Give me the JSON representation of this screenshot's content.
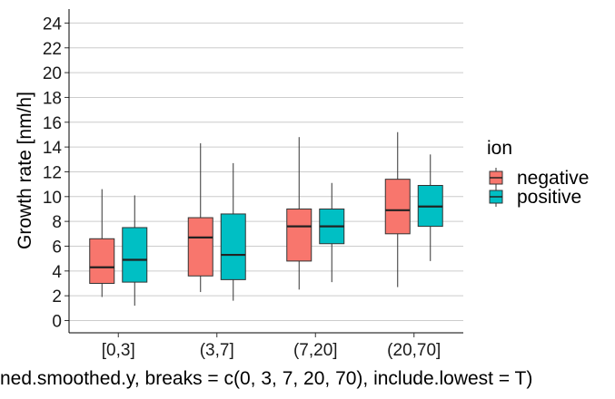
{
  "chart_data": {
    "type": "box",
    "xlabel": "ned.smoothed.y, breaks = c(0, 3, 7, 20, 70), include.lowest = T)",
    "ylabel": "Growth rate [nm/h]",
    "ylim": [
      -1,
      25.3
    ],
    "yticks": [
      0,
      2,
      4,
      6,
      8,
      10,
      12,
      14,
      16,
      18,
      20,
      22,
      24
    ],
    "categories": [
      "[0,3]",
      "(3,7]",
      "(7,20]",
      "(20,70]"
    ],
    "grid": "horizontal",
    "legend": {
      "title": "ion",
      "position": "right"
    },
    "series": [
      {
        "name": "negative",
        "color": "#F8766D",
        "boxes": [
          {
            "min": 1.9,
            "q1": 3.0,
            "median": 4.3,
            "q3": 6.6,
            "max": 10.6
          },
          {
            "min": 2.3,
            "q1": 3.6,
            "median": 6.7,
            "q3": 8.3,
            "max": 14.3
          },
          {
            "min": 2.5,
            "q1": 4.8,
            "median": 7.6,
            "q3": 9.0,
            "max": 14.8
          },
          {
            "min": 2.7,
            "q1": 7.0,
            "median": 8.9,
            "q3": 11.4,
            "max": 15.2
          }
        ]
      },
      {
        "name": "positive",
        "color": "#00BFC4",
        "boxes": [
          {
            "min": 1.2,
            "q1": 3.1,
            "median": 4.9,
            "q3": 7.5,
            "max": 10.1
          },
          {
            "min": 1.6,
            "q1": 3.3,
            "median": 5.3,
            "q3": 8.6,
            "max": 12.7
          },
          {
            "min": 3.1,
            "q1": 6.2,
            "median": 7.6,
            "q3": 9.0,
            "max": 11.1
          },
          {
            "min": 4.8,
            "q1": 7.6,
            "median": 9.2,
            "q3": 10.9,
            "max": 13.4
          }
        ]
      }
    ]
  }
}
